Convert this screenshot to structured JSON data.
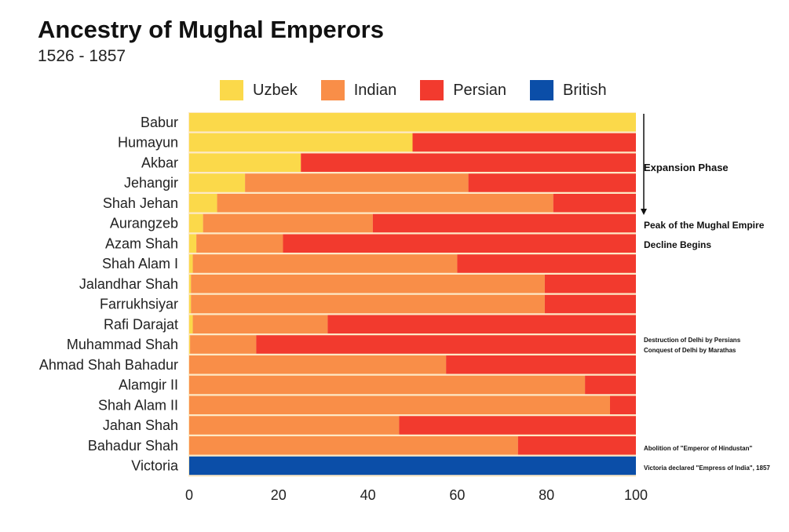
{
  "chart_data": {
    "type": "bar",
    "orientation": "horizontal",
    "stacked": true,
    "title": "Ancestry of Mughal Emperors",
    "subtitle": "1526 - 1857",
    "xlabel": "",
    "ylabel": "",
    "xlim": [
      0,
      100
    ],
    "xticks": [
      0,
      20,
      40,
      60,
      80,
      100
    ],
    "legend_position": "top",
    "categories": [
      "Babur",
      "Humayun",
      "Akbar",
      "Jehangir",
      "Shah Jehan",
      "Aurangzeb",
      "Azam Shah",
      "Shah Alam I",
      "Jalandhar Shah",
      "Farrukhsiyar",
      "Rafi Darajat",
      "Muhammad Shah",
      "Ahmad Shah Bahadur",
      "Alamgir II",
      "Shah Alam II",
      "Jahan Shah",
      "Bahadur Shah",
      "Victoria"
    ],
    "series": [
      {
        "name": "Uzbek",
        "color": "#fbd94a",
        "values": [
          100,
          50,
          25,
          12.5,
          6.25,
          3.1,
          1.6,
          0.8,
          0.4,
          0.4,
          0.8,
          0.2,
          0,
          0,
          0,
          0,
          0,
          0
        ]
      },
      {
        "name": "Indian",
        "color": "#f98e48",
        "values": [
          0,
          0,
          0,
          50,
          75.25,
          38,
          19.4,
          59.2,
          79.2,
          79.2,
          30.2,
          14.8,
          57.5,
          88.6,
          94.2,
          47,
          73.6,
          0
        ]
      },
      {
        "name": "Persian",
        "color": "#f23a2e",
        "values": [
          0,
          50,
          75,
          37.5,
          18.5,
          58.9,
          79,
          40,
          20.4,
          20.4,
          69,
          85,
          42.5,
          11.4,
          5.8,
          53,
          26.4,
          0
        ]
      },
      {
        "name": "British",
        "color": "#0b4ea8",
        "values": [
          0,
          0,
          0,
          0,
          0,
          0,
          0,
          0,
          0,
          0,
          0,
          0,
          0,
          0,
          0,
          0,
          0,
          100
        ]
      }
    ],
    "annotations": [
      {
        "text": "Expansion Phase",
        "row_from": "Babur",
        "row_to": "Shah Jehan",
        "arrow": true
      },
      {
        "text": "Peak of the Mughal Empire",
        "row": "Aurangzeb"
      },
      {
        "text": "Decline Begins",
        "row": "Azam Shah"
      },
      {
        "text": "Destruction of Delhi by Persians",
        "row": "Muhammad Shah"
      },
      {
        "text": "Conquest of Delhi by Marathas",
        "row": "Muhammad Shah"
      },
      {
        "text": "Abolition of \"Emperor of Hindustan\"",
        "row": "Bahadur Shah"
      },
      {
        "text": "Victoria declared \"Empress of India\", 1857",
        "row": "Victoria"
      }
    ]
  }
}
